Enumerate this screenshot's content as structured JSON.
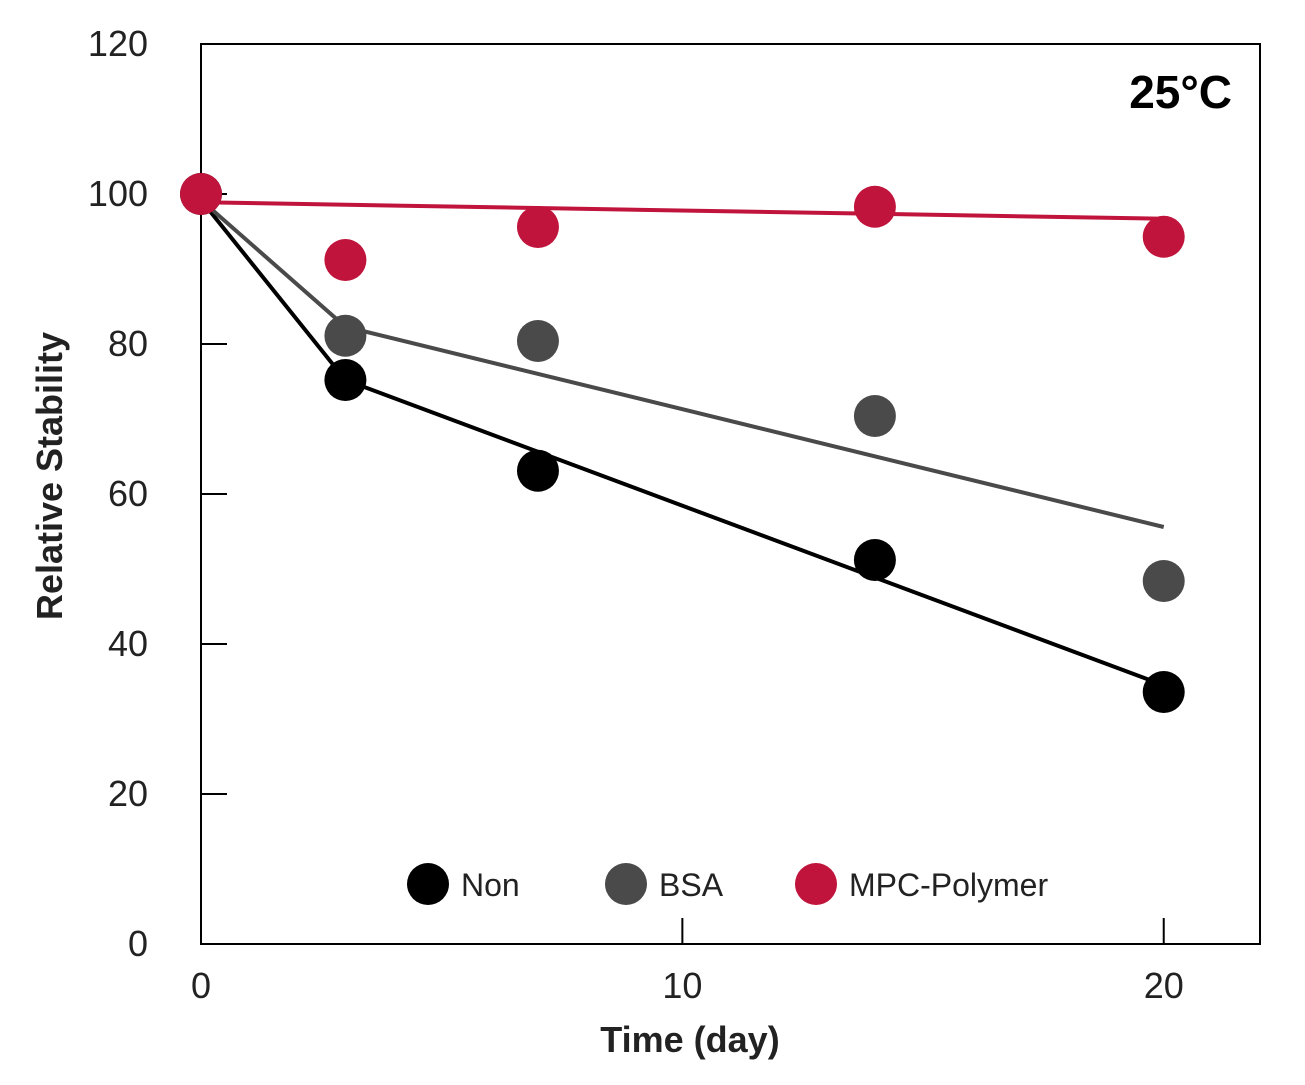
{
  "chart_data": {
    "type": "scatter",
    "annotation": "25°C",
    "xlabel": "Time (day)",
    "ylabel": "Relative Stability",
    "xlim": [
      0,
      22
    ],
    "ylim": [
      0,
      120
    ],
    "xticks": [
      0,
      10,
      20
    ],
    "yticks": [
      0,
      20,
      40,
      60,
      80,
      100,
      120
    ],
    "grid": false,
    "legend_placement": "bottom-center",
    "series": [
      {
        "name": "Non",
        "color": "#000000",
        "points": [
          [
            0,
            100
          ],
          [
            3,
            75.2
          ],
          [
            7,
            63.1
          ],
          [
            14,
            51.2
          ],
          [
            20,
            33.6
          ]
        ],
        "fit_line": [
          [
            0,
            99.2
          ],
          [
            3,
            75.2
          ],
          [
            20,
            34.5
          ]
        ]
      },
      {
        "name": "BSA",
        "color": "#4a4a4a",
        "points": [
          [
            3,
            81.1
          ],
          [
            7,
            80.4
          ],
          [
            14,
            70.4
          ],
          [
            20,
            48.4
          ]
        ],
        "fit_line": [
          [
            0,
            99.2
          ],
          [
            3,
            82.3
          ],
          [
            20,
            55.6
          ]
        ]
      },
      {
        "name": "MPC-Polymer",
        "color": "#c0143c",
        "points": [
          [
            0,
            100
          ],
          [
            3,
            91.2
          ],
          [
            7,
            95.6
          ],
          [
            14,
            98.3
          ],
          [
            20,
            94.3
          ]
        ],
        "fit_line": [
          [
            0,
            98.9
          ],
          [
            20,
            96.7
          ]
        ]
      }
    ]
  }
}
